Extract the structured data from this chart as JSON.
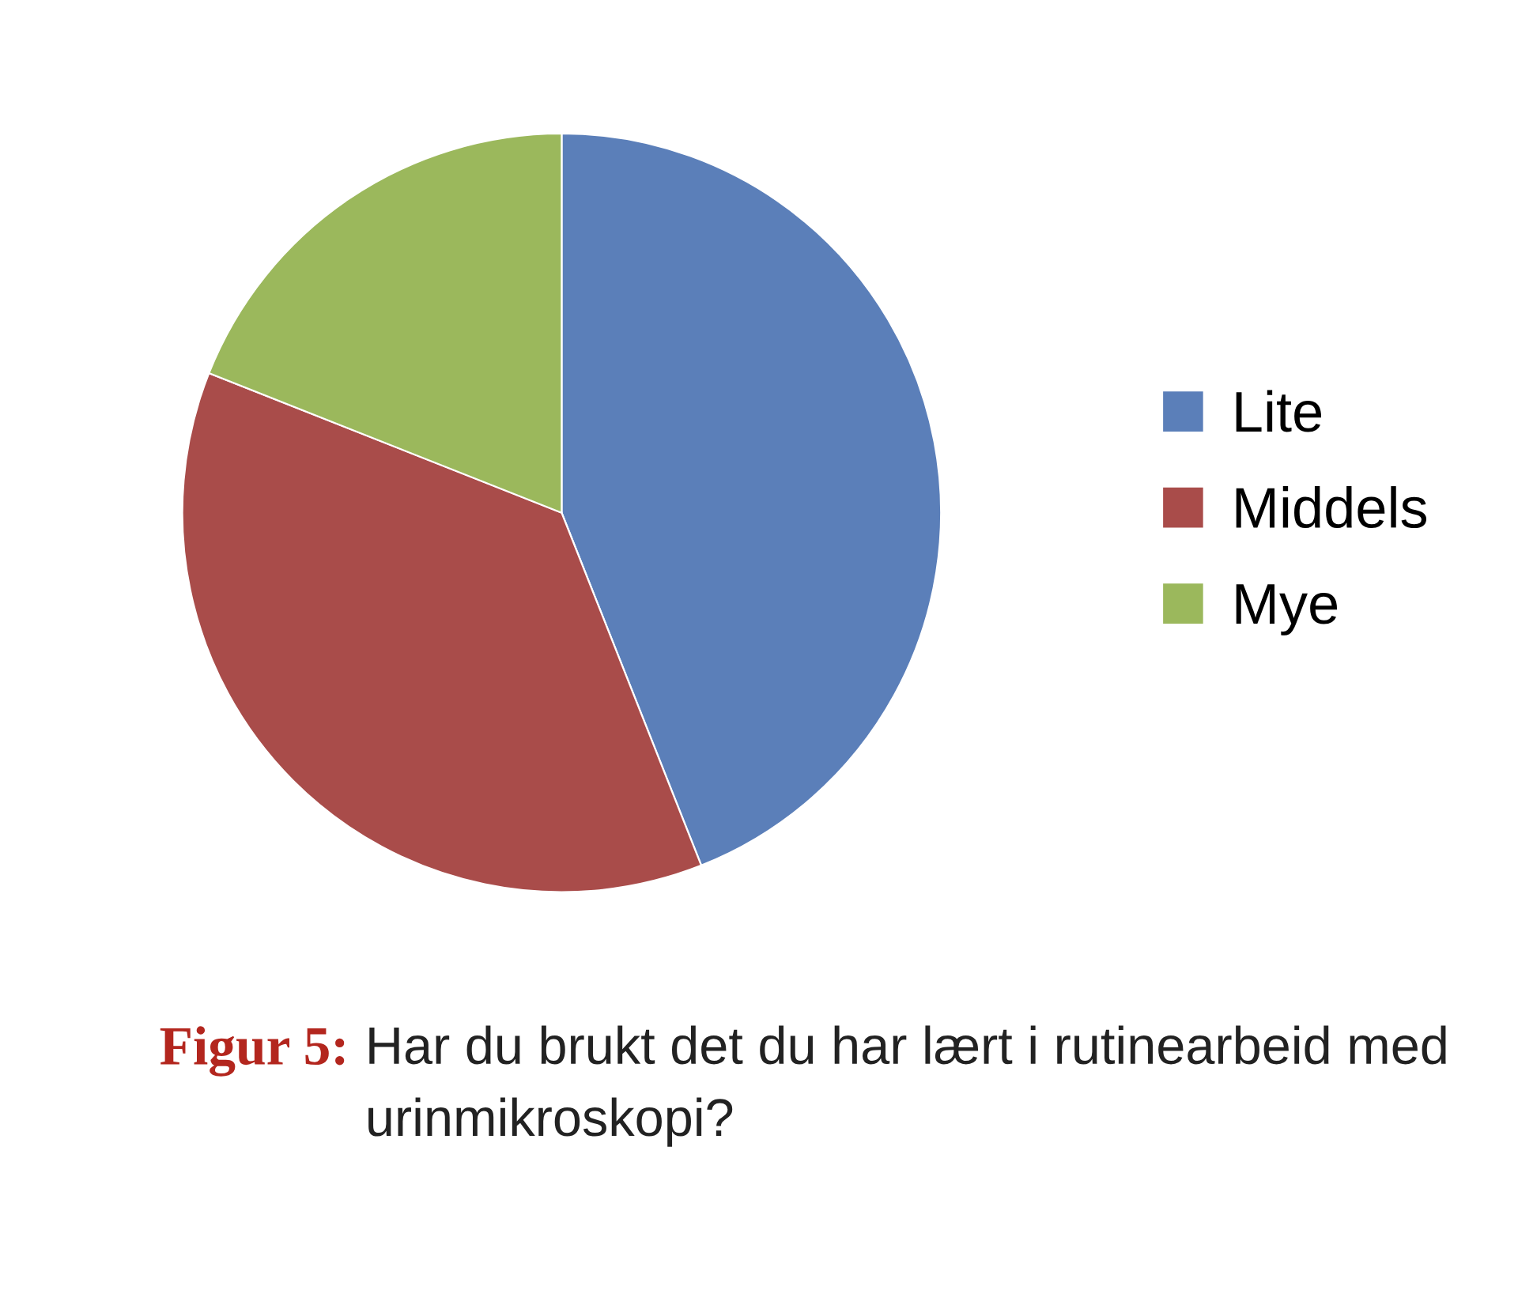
{
  "chart_data": {
    "type": "pie",
    "title": "Figur 5:",
    "subtitle": "Har du brukt det du har lært i rutinearbeid med urinmikroskopi?",
    "categories": [
      "Lite",
      "Middels",
      "Mye"
    ],
    "values": [
      44,
      37,
      19
    ],
    "colors": [
      "#5b7fb9",
      "#a94c4a",
      "#9bb85c"
    ],
    "legend": "right"
  }
}
